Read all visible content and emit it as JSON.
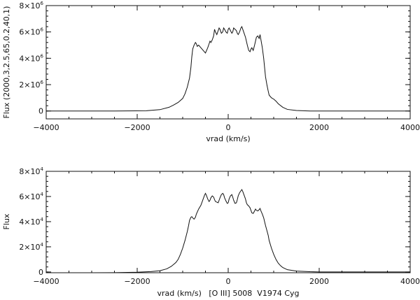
{
  "chart_data": [
    {
      "type": "line",
      "title": "",
      "xlabel": "vrad (km/s)",
      "ylabel": "Flux (2000,3,2.5,65,0.2,40,1)",
      "xlim": [
        -4000,
        4000
      ],
      "ylim": [
        -600000,
        8000000
      ],
      "x_major_ticks": [
        -4000,
        -2000,
        0,
        2000,
        4000
      ],
      "x_tick_labels": [
        "−4000",
        "−2000",
        "0",
        "2000",
        "4000"
      ],
      "y_major_ticks": [
        0,
        2000000,
        4000000,
        6000000,
        8000000
      ],
      "y_tick_labels": [
        {
          "mantissa": "0",
          "exp": ""
        },
        {
          "mantissa": "2×10",
          "exp": "6"
        },
        {
          "mantissa": "4×10",
          "exp": "6"
        },
        {
          "mantissa": "6×10",
          "exp": "6"
        },
        {
          "mantissa": "8×10",
          "exp": "6"
        }
      ],
      "grid": false,
      "series": [
        {
          "x": [
            -4000,
            -2500,
            -1800,
            -1500,
            -1300,
            -1200,
            -1100,
            -1000,
            -950,
            -900,
            -850,
            -820,
            -800,
            -780,
            -750,
            -720,
            -700,
            -680,
            -650,
            -600,
            -550,
            -500,
            -450,
            -420,
            -400,
            -380,
            -350,
            -320,
            -300,
            -280,
            -250,
            -220,
            -200,
            -180,
            -150,
            -120,
            -100,
            -80,
            -50,
            -20,
            0,
            20,
            50,
            80,
            100,
            120,
            150,
            180,
            200,
            220,
            250,
            280,
            300,
            320,
            350,
            380,
            400,
            420,
            450,
            480,
            500,
            520,
            550,
            580,
            600,
            620,
            650,
            680,
            700,
            720,
            750,
            780,
            800,
            820,
            850,
            880,
            900,
            950,
            1000,
            1050,
            1100,
            1200,
            1300,
            1500,
            1800,
            2500,
            4000
          ],
          "y": [
            0,
            0,
            20000,
            100000,
            280000,
            450000,
            650000,
            950000,
            1300000,
            1800000,
            2500000,
            3300000,
            4100000,
            4700000,
            5000000,
            5200000,
            5100000,
            4900000,
            5000000,
            4800000,
            4600000,
            4400000,
            4800000,
            5100000,
            5300000,
            5200000,
            5400000,
            5700000,
            6200000,
            6000000,
            5800000,
            6100000,
            6300000,
            6200000,
            5900000,
            6000000,
            6300000,
            6200000,
            6000000,
            5900000,
            6200000,
            6300000,
            6100000,
            5900000,
            6000000,
            6300000,
            6200000,
            6100000,
            5900000,
            5800000,
            6000000,
            6300000,
            6400000,
            6200000,
            5900000,
            5600000,
            5300000,
            5000000,
            4600000,
            4500000,
            4700000,
            4800000,
            4600000,
            5000000,
            5300000,
            5600000,
            5700000,
            5500000,
            5800000,
            5400000,
            4800000,
            4000000,
            3300000,
            2600000,
            2000000,
            1500000,
            1200000,
            1000000,
            900000,
            750000,
            550000,
            280000,
            120000,
            40000,
            0,
            0,
            0
          ]
        }
      ]
    },
    {
      "type": "line",
      "title": "",
      "xlabel": "vrad (km/s)   [O III] 5008  V1974 Cyg",
      "ylabel": "Flux",
      "xlim": [
        -4000,
        4000
      ],
      "ylim": [
        -600,
        80000
      ],
      "x_major_ticks": [
        -4000,
        -2000,
        0,
        2000,
        4000
      ],
      "x_tick_labels": [
        "−4000",
        "−2000",
        "0",
        "2000",
        "4000"
      ],
      "y_major_ticks": [
        0,
        20000,
        40000,
        60000,
        80000
      ],
      "y_tick_labels": [
        {
          "mantissa": "0",
          "exp": ""
        },
        {
          "mantissa": "2×10",
          "exp": "4"
        },
        {
          "mantissa": "4×10",
          "exp": "4"
        },
        {
          "mantissa": "6×10",
          "exp": "4"
        },
        {
          "mantissa": "8×10",
          "exp": "4"
        }
      ],
      "grid": false,
      "series": [
        {
          "x": [
            -4000,
            -3000,
            -2500,
            -2000,
            -1700,
            -1500,
            -1350,
            -1250,
            -1150,
            -1100,
            -1050,
            -1000,
            -950,
            -900,
            -870,
            -850,
            -820,
            -800,
            -780,
            -750,
            -720,
            -700,
            -650,
            -600,
            -550,
            -520,
            -500,
            -480,
            -450,
            -420,
            -400,
            -380,
            -350,
            -320,
            -300,
            -280,
            -250,
            -220,
            -200,
            -180,
            -150,
            -120,
            -100,
            -80,
            -50,
            -20,
            0,
            20,
            50,
            80,
            100,
            120,
            150,
            180,
            200,
            220,
            250,
            280,
            300,
            320,
            350,
            380,
            400,
            420,
            450,
            480,
            500,
            520,
            550,
            580,
            600,
            620,
            650,
            680,
            700,
            720,
            750,
            780,
            800,
            820,
            850,
            880,
            900,
            950,
            1000,
            1050,
            1100,
            1150,
            1200,
            1300,
            1500,
            1800,
            2000,
            2500,
            3000,
            4000
          ],
          "y": [
            -800,
            -700,
            -500,
            -200,
            300,
            1000,
            2500,
            4500,
            7500,
            10000,
            14000,
            19000,
            25000,
            32000,
            37000,
            41000,
            43500,
            44000,
            43000,
            42000,
            43500,
            46000,
            50000,
            53000,
            58000,
            61000,
            62500,
            61000,
            58000,
            56000,
            57000,
            59000,
            60500,
            59500,
            57500,
            56000,
            55500,
            55000,
            57000,
            59000,
            61500,
            62500,
            61500,
            59000,
            56500,
            54500,
            55000,
            58000,
            60500,
            61500,
            59500,
            57000,
            54500,
            55000,
            57500,
            60500,
            63000,
            64500,
            65500,
            64000,
            61000,
            58000,
            55000,
            53500,
            52500,
            51000,
            49000,
            47000,
            46500,
            48500,
            50000,
            49000,
            48500,
            49500,
            50500,
            48500,
            46000,
            43000,
            40000,
            37000,
            33000,
            29000,
            25000,
            19000,
            14000,
            10000,
            7000,
            5000,
            3500,
            1800,
            700,
            200,
            50,
            0,
            0,
            0
          ]
        }
      ]
    }
  ]
}
